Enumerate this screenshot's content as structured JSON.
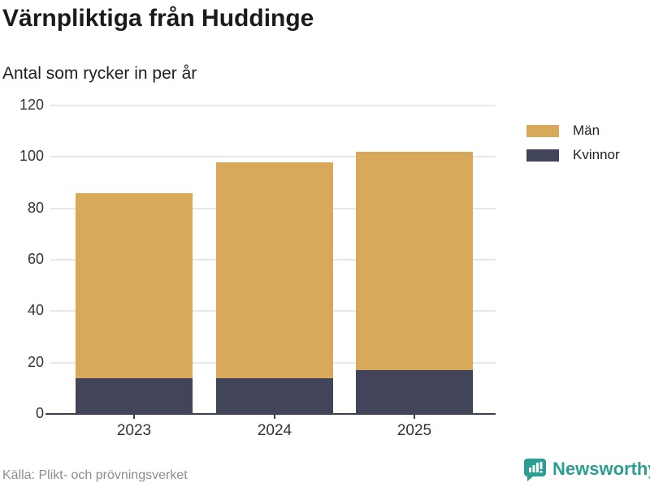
{
  "chart_data": {
    "type": "bar",
    "stacked": true,
    "title": "Värnpliktiga från Huddinge",
    "subtitle": "Antal som rycker in per år",
    "categories": [
      "2023",
      "2024",
      "2025"
    ],
    "series": [
      {
        "name": "Män",
        "color": "#d8a95a",
        "values": [
          72,
          84,
          85
        ]
      },
      {
        "name": "Kvinnor",
        "color": "#424559",
        "values": [
          14,
          14,
          17
        ]
      }
    ],
    "stack_order_bottom_to_top": [
      "Kvinnor",
      "Män"
    ],
    "totals": [
      86,
      98,
      102
    ],
    "ylim": [
      0,
      120
    ],
    "yticks": [
      0,
      20,
      40,
      60,
      80,
      100,
      120
    ],
    "grid": true,
    "legend_position": "right"
  },
  "footer": {
    "source": "Källa: Plikt- och prövningsverket",
    "brand_name": "Newsworthy"
  },
  "colors": {
    "bar_men": "#d8a95a",
    "bar_women": "#424559",
    "brand_teal": "#2a9e90",
    "gridline": "#e7e7e7",
    "axis": "#3c3f51"
  }
}
